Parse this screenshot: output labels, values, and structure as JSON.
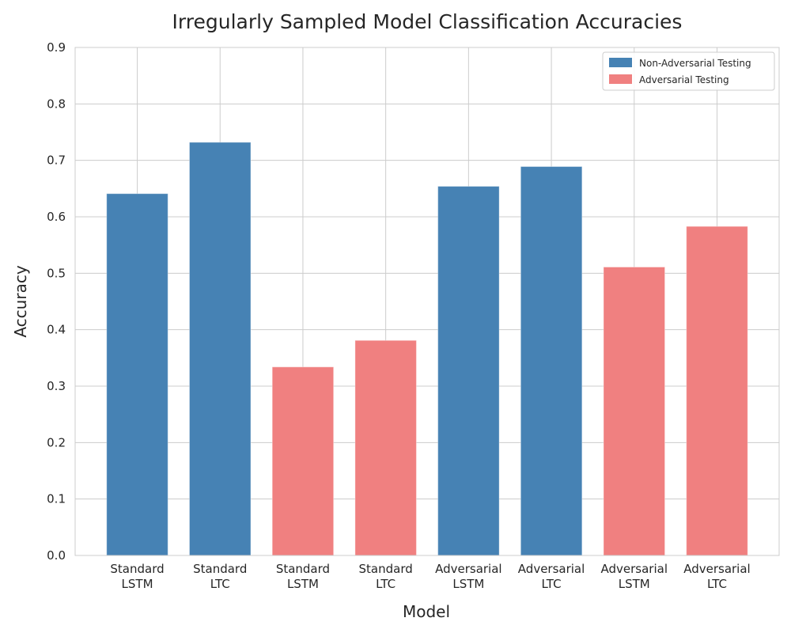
{
  "chart_data": {
    "type": "bar",
    "title": "Irregularly Sampled Model Classification Accuracies",
    "xlabel": "Model",
    "ylabel": "Accuracy",
    "ylim": [
      0,
      0.9
    ],
    "yticks": [
      "0.0",
      "0.1",
      "0.2",
      "0.3",
      "0.4",
      "0.5",
      "0.6",
      "0.7",
      "0.8",
      "0.9"
    ],
    "grid": true,
    "legend_position": "top-right",
    "categories": [
      [
        "Standard",
        "LSTM"
      ],
      [
        "Standard",
        "LTC"
      ],
      [
        "Standard",
        "LSTM"
      ],
      [
        "Standard",
        "LTC"
      ],
      [
        "Adversarial",
        "LSTM"
      ],
      [
        "Adversarial",
        "LTC"
      ],
      [
        "Adversarial",
        "LSTM"
      ],
      [
        "Adversarial",
        "LTC"
      ]
    ],
    "values": [
      0.641,
      0.732,
      0.334,
      0.381,
      0.654,
      0.689,
      0.511,
      0.583
    ],
    "bar_groups": [
      0,
      0,
      1,
      1,
      0,
      0,
      1,
      1
    ],
    "legend": [
      {
        "name": "Non-Adversarial Testing",
        "color": "#4682b4"
      },
      {
        "name": "Adversarial Testing",
        "color": "#f08080"
      }
    ]
  }
}
